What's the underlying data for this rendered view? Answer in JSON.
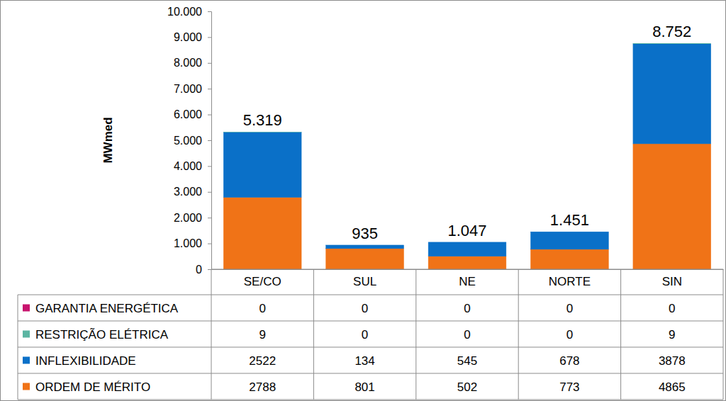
{
  "chart_data": {
    "type": "bar",
    "stacked": true,
    "y_label": "MWmed",
    "categories": [
      "SE/CO",
      "SUL",
      "NE",
      "NORTE",
      "SIN"
    ],
    "series": [
      {
        "name": "ORDEM DE MÉRITO",
        "color": "#F07317",
        "values": [
          2788,
          801,
          502,
          773,
          4865
        ]
      },
      {
        "name": "INFLEXIBILIDADE",
        "color": "#0A70C8",
        "values": [
          2522,
          134,
          545,
          678,
          3878
        ]
      },
      {
        "name": "RESTRIÇÃO ELÉTRICA",
        "color": "#5BB5A2",
        "values": [
          9,
          0,
          0,
          0,
          9
        ]
      },
      {
        "name": "GARANTIA ENERGÉTICA",
        "color": "#C8146E",
        "values": [
          0,
          0,
          0,
          0,
          0
        ]
      }
    ],
    "totals": [
      5319,
      935,
      1047,
      1451,
      8752
    ],
    "total_labels": [
      "5.319",
      "935",
      "1.047",
      "1.451",
      "8.752"
    ],
    "ylim": [
      0,
      10000
    ],
    "yticks": [
      0,
      {
        "value": 1000,
        "label": "1.000"
      },
      {
        "value": 2000,
        "label": "2.000"
      },
      {
        "value": 3000,
        "label": "3.000"
      },
      {
        "value": 4000,
        "label": "4.000"
      },
      {
        "value": 5000,
        "label": "5.000"
      },
      {
        "value": 6000,
        "label": "6.000"
      },
      {
        "value": 7000,
        "label": "7.000"
      },
      {
        "value": 8000,
        "label": "8.000"
      },
      {
        "value": 9000,
        "label": "9.000"
      },
      {
        "value": 10000,
        "label": "10.000"
      }
    ],
    "grid": false,
    "legend": "bottom"
  }
}
